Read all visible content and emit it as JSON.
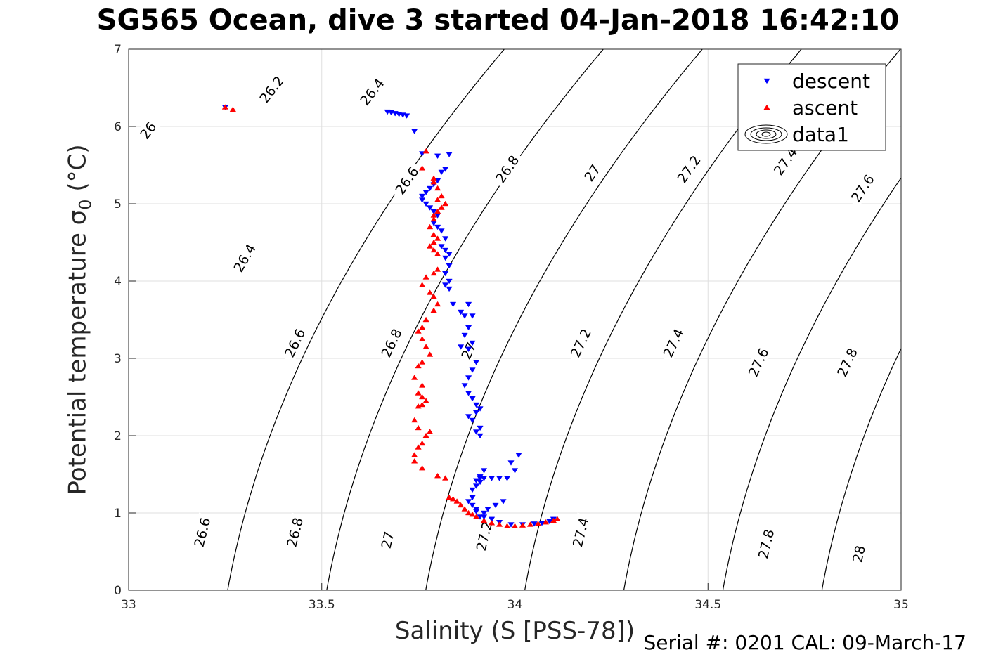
{
  "title": "SG565 Ocean, dive 3 started 04-Jan-2018 16:42:10",
  "footer": "Serial #: 0201  CAL: 09-March-17",
  "colors": {
    "descent": "#0000ff",
    "ascent": "#ff0000",
    "contour": "#000000",
    "grid": "#dfdfdf"
  },
  "chart_data": {
    "type": "scatter",
    "xlabel": "Salinity (S [PSS-78])",
    "ylabel_text": "Potential temperature ",
    "ylabel_symbol": "σ",
    "ylabel_sub": "0",
    "ylabel_unit": " (°C)",
    "xlim": [
      33,
      35
    ],
    "ylim": [
      0,
      7
    ],
    "xticks": [
      "33",
      "33.5",
      "34",
      "34.5",
      "35"
    ],
    "yticks": [
      "0",
      "1",
      "2",
      "3",
      "4",
      "5",
      "6",
      "7"
    ],
    "grid": true,
    "legend_position": "top-right",
    "legend": [
      "descent",
      "ascent",
      "data1"
    ],
    "contour_levels": [
      26,
      26.2,
      26.4,
      26.6,
      26.8,
      27,
      27.2,
      27.4,
      27.6,
      27.8,
      28
    ],
    "contour_labels": [
      {
        "text": "26",
        "s": 33.05,
        "t": 5.95
      },
      {
        "text": "26.2",
        "s": 33.37,
        "t": 6.48
      },
      {
        "text": "26.4",
        "s": 33.63,
        "t": 6.45
      },
      {
        "text": "26.6",
        "s": 33.72,
        "t": 5.3
      },
      {
        "text": "26.8",
        "s": 33.98,
        "t": 5.45
      },
      {
        "text": "27",
        "s": 34.2,
        "t": 5.4
      },
      {
        "text": "27.2",
        "s": 34.45,
        "t": 5.45
      },
      {
        "text": "27.4",
        "s": 34.7,
        "t": 5.55
      },
      {
        "text": "27.6",
        "s": 34.9,
        "t": 5.2
      },
      {
        "text": "26.4",
        "s": 33.3,
        "t": 4.3
      },
      {
        "text": "26.6",
        "s": 33.43,
        "t": 3.2
      },
      {
        "text": "26.8",
        "s": 33.68,
        "t": 3.2
      },
      {
        "text": "27",
        "s": 33.88,
        "t": 3.1
      },
      {
        "text": "27.2",
        "s": 34.17,
        "t": 3.2
      },
      {
        "text": "27.4",
        "s": 34.41,
        "t": 3.2
      },
      {
        "text": "27.6",
        "s": 34.63,
        "t": 2.95
      },
      {
        "text": "27.8",
        "s": 34.86,
        "t": 2.95
      },
      {
        "text": "26.6",
        "s": 33.19,
        "t": 0.75
      },
      {
        "text": "26.8",
        "s": 33.43,
        "t": 0.75
      },
      {
        "text": "27",
        "s": 33.67,
        "t": 0.65
      },
      {
        "text": "27.2",
        "s": 33.92,
        "t": 0.7
      },
      {
        "text": "27.4",
        "s": 34.17,
        "t": 0.75
      },
      {
        "text": "27.8",
        "s": 34.65,
        "t": 0.6
      },
      {
        "text": "28",
        "s": 34.89,
        "t": 0.47
      }
    ],
    "series": [
      {
        "name": "descent",
        "marker": "triangle-down",
        "x": [
          33.25,
          33.67,
          33.68,
          33.69,
          33.7,
          33.71,
          33.72,
          33.74,
          33.76,
          33.8,
          33.83,
          33.82,
          33.81,
          33.8,
          33.79,
          33.78,
          33.77,
          33.76,
          33.76,
          33.77,
          33.78,
          33.79,
          33.8,
          33.79,
          33.8,
          33.81,
          33.82,
          33.81,
          33.82,
          33.83,
          33.82,
          33.83,
          33.82,
          33.83,
          33.82,
          33.83,
          33.84,
          33.86,
          33.87,
          33.88,
          33.89,
          33.88,
          33.87,
          33.86,
          33.88,
          33.89,
          33.9,
          33.89,
          33.88,
          33.87,
          33.88,
          33.89,
          33.9,
          33.91,
          33.9,
          33.91,
          33.89,
          33.88,
          33.9,
          33.91,
          33.92,
          33.91,
          33.9,
          33.91,
          33.9,
          33.89,
          33.91,
          33.92,
          33.94,
          33.96,
          33.98,
          34.0,
          34.01,
          33.99,
          33.97,
          33.95,
          33.93,
          33.92,
          33.91,
          33.9,
          33.89,
          33.88,
          33.89,
          33.9,
          33.92,
          33.94,
          33.96,
          33.99,
          34.02,
          34.05,
          34.07,
          34.09,
          34.1
        ],
        "y": [
          6.25,
          6.19,
          6.18,
          6.17,
          6.16,
          6.15,
          6.14,
          5.94,
          5.65,
          5.62,
          5.64,
          5.45,
          5.41,
          5.3,
          5.25,
          5.2,
          5.15,
          5.1,
          5.05,
          5.0,
          4.95,
          4.9,
          4.85,
          4.75,
          4.7,
          4.65,
          4.55,
          4.45,
          4.4,
          4.35,
          4.3,
          4.2,
          4.1,
          4.0,
          3.95,
          3.9,
          3.7,
          3.6,
          3.55,
          3.7,
          3.55,
          3.4,
          3.3,
          3.15,
          3.12,
          3.2,
          2.95,
          2.85,
          2.75,
          2.65,
          2.55,
          2.48,
          2.4,
          2.35,
          2.3,
          2.1,
          2.2,
          2.25,
          2.05,
          2.0,
          1.55,
          1.47,
          1.42,
          1.4,
          1.35,
          1.3,
          1.45,
          1.45,
          1.45,
          1.45,
          1.45,
          1.55,
          1.75,
          1.65,
          1.15,
          1.1,
          1.05,
          1.0,
          0.95,
          1.02,
          1.1,
          1.15,
          1.2,
          1.05,
          0.95,
          0.92,
          0.88,
          0.85,
          0.85,
          0.86,
          0.87,
          0.89,
          0.92
        ]
      },
      {
        "name": "ascent",
        "marker": "triangle-up",
        "x": [
          33.25,
          33.27,
          33.77,
          33.76,
          33.79,
          33.79,
          33.8,
          33.81,
          33.82,
          33.81,
          33.8,
          33.79,
          33.81,
          33.8,
          33.79,
          33.78,
          33.79,
          33.8,
          33.79,
          33.78,
          33.79,
          33.8,
          33.8,
          33.79,
          33.77,
          33.76,
          33.78,
          33.79,
          33.8,
          33.79,
          33.77,
          33.76,
          33.75,
          33.76,
          33.77,
          33.78,
          33.76,
          33.75,
          33.74,
          33.76,
          33.75,
          33.76,
          33.77,
          33.76,
          33.75,
          33.74,
          33.75,
          33.78,
          33.77,
          33.76,
          33.75,
          33.74,
          33.74,
          33.76,
          33.8,
          33.82,
          33.83,
          33.84,
          33.85,
          33.86,
          33.87,
          33.88,
          33.89,
          33.9,
          33.92,
          33.94,
          33.96,
          33.98,
          34.0,
          34.02,
          34.04,
          34.06,
          34.08,
          34.1,
          34.11
        ],
        "y": [
          6.25,
          6.22,
          5.68,
          5.46,
          5.33,
          5.28,
          5.2,
          5.1,
          5.0,
          4.95,
          4.9,
          4.85,
          4.95,
          5.05,
          4.8,
          4.7,
          4.6,
          4.55,
          4.5,
          4.45,
          4.4,
          4.35,
          4.15,
          4.1,
          4.05,
          3.95,
          3.85,
          3.8,
          3.7,
          3.62,
          3.5,
          3.4,
          3.35,
          3.25,
          3.15,
          3.05,
          2.95,
          2.9,
          2.75,
          2.65,
          2.55,
          2.5,
          2.45,
          2.4,
          2.38,
          2.2,
          2.1,
          2.05,
          2.0,
          1.9,
          1.85,
          1.75,
          1.67,
          1.58,
          1.48,
          1.45,
          1.2,
          1.18,
          1.15,
          1.1,
          1.05,
          1.0,
          0.98,
          0.95,
          0.9,
          0.87,
          0.85,
          0.83,
          0.83,
          0.84,
          0.85,
          0.86,
          0.88,
          0.9,
          0.92
        ]
      }
    ]
  }
}
